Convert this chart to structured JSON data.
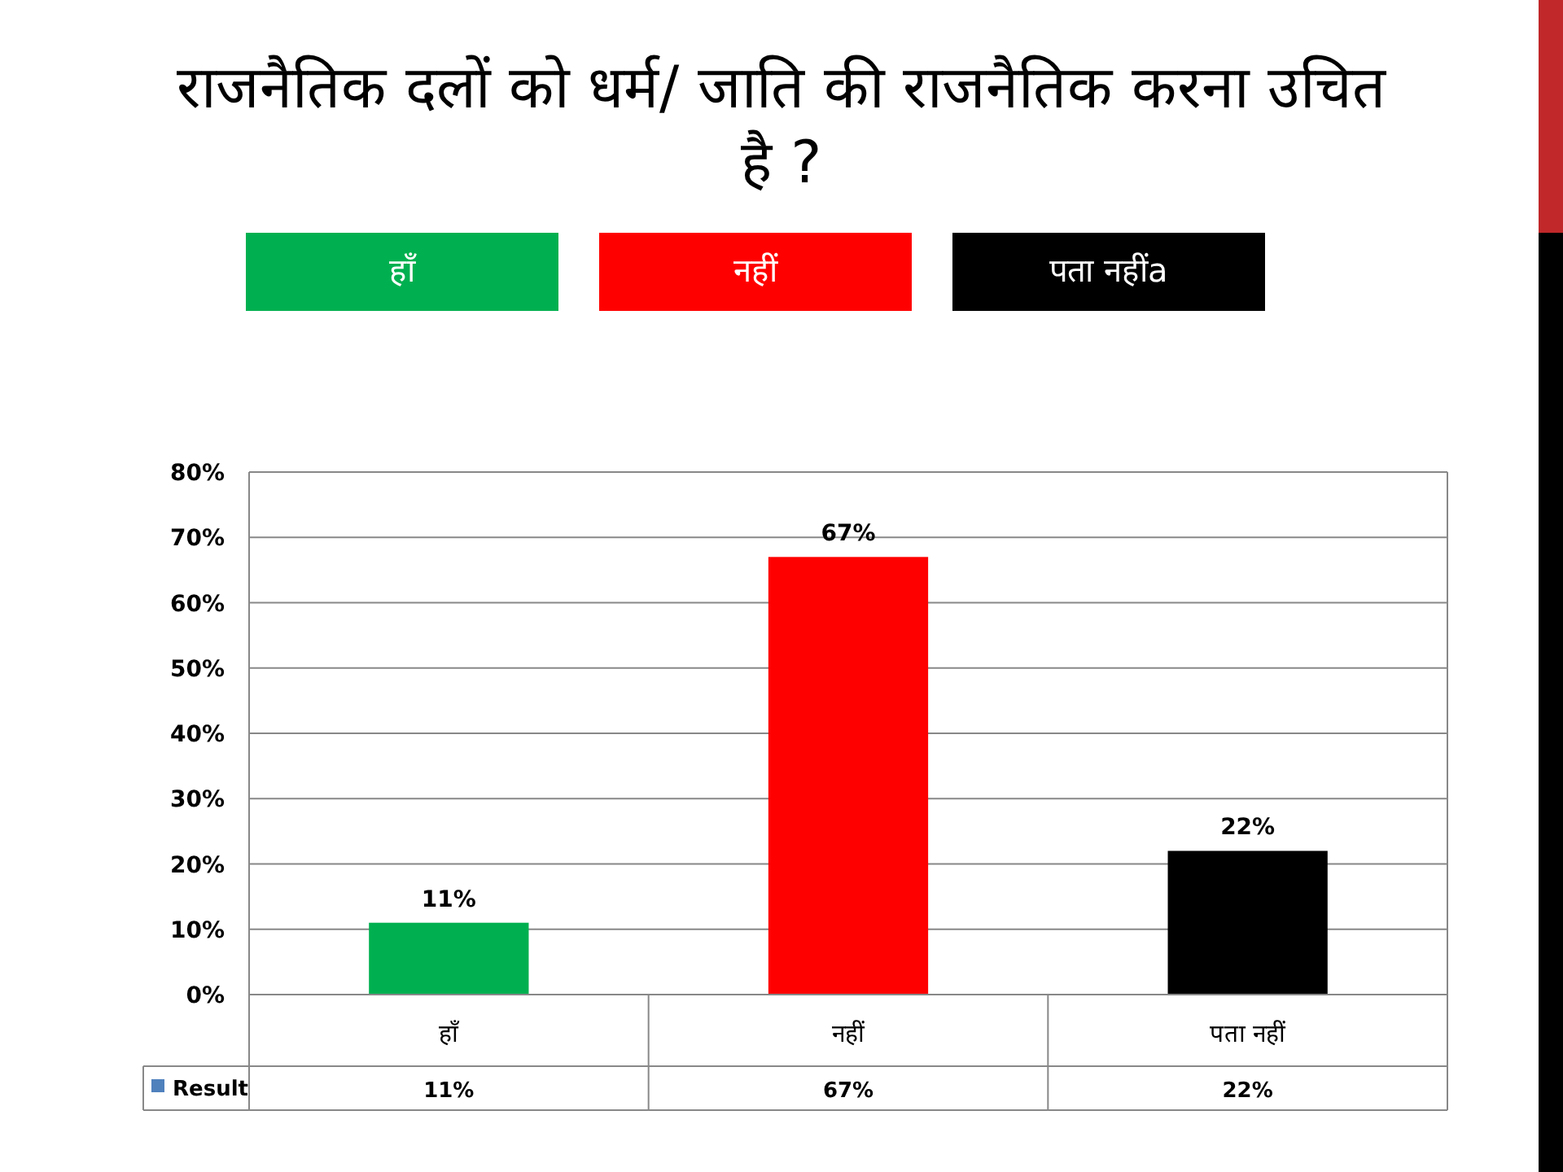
{
  "chart_data": {
    "type": "bar",
    "title": "राजनैतिक दलों को धर्म/ जाति की राजनैतिक करना उचित है ?",
    "categories": [
      "हाँ",
      "नहीं",
      "पता नहीं"
    ],
    "series": [
      {
        "name": "Result",
        "color": "#4f81bd",
        "colors": [
          "#00b050",
          "#ff0000",
          "#000000"
        ],
        "values": [
          11,
          67,
          22
        ],
        "value_labels": [
          "11%",
          "67%",
          "22%"
        ]
      }
    ],
    "annotations": [
      "हाँ",
      "नहीं",
      "पता नहींa"
    ],
    "ylim": [
      0,
      80
    ],
    "yticks": [
      {
        "value": 0,
        "label": "0%"
      },
      {
        "value": 10,
        "label": "10%"
      },
      {
        "value": 20,
        "label": "20%"
      },
      {
        "value": 30,
        "label": "30%"
      },
      {
        "value": 40,
        "label": "40%"
      },
      {
        "value": 50,
        "label": "50%"
      },
      {
        "value": 60,
        "label": "60%"
      },
      {
        "value": 70,
        "label": "70%"
      },
      {
        "value": 80,
        "label": "80%"
      }
    ],
    "grid": "y"
  }
}
